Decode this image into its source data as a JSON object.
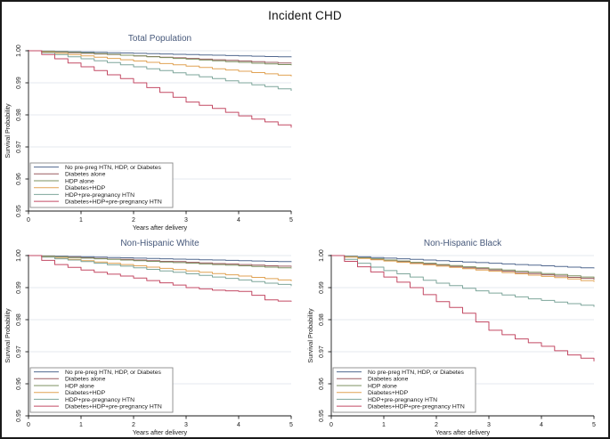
{
  "figure": {
    "title": "Incident CHD"
  },
  "styles": {
    "background": "#ffffff",
    "border_color": "#1a1a1a",
    "panel_title_color": "#47597b",
    "grid_color": "#e6eaef",
    "axis_color": "#1a1a1a",
    "tick_text_color": "#1a1a1a",
    "legend_border_color": "#8a8a8a",
    "legend_bg": "#ffffff",
    "series_colors": {
      "navy": "#51688f",
      "maroon": "#9a5c60",
      "forest_green": "#7d9060",
      "dark_orange": "#e0a254",
      "teal": "#7ea69b",
      "cranberry": "#c34a64"
    }
  },
  "chart_data": [
    {
      "type": "line",
      "subtype": "kaplan-meier-step",
      "title": "Total Population",
      "xlabel": "Years after delivery",
      "ylabel": "Survival Probability",
      "xlim": [
        0,
        5
      ],
      "ylim": [
        0.95,
        1.0
      ],
      "xticks": [
        0,
        1,
        2,
        3,
        4,
        5
      ],
      "xtick_labels": [
        "0",
        "1",
        "2",
        "3",
        "4",
        "5"
      ],
      "yticks": [
        0.95,
        0.96,
        0.97,
        0.98,
        0.99,
        1.0
      ],
      "ytick_labels": [
        "0.95",
        "0.96",
        "0.97",
        "0.98",
        "0.99",
        "1.00"
      ],
      "grid": "horizontal",
      "legend_position": "inside-bottom-left",
      "x": [
        0,
        0.25,
        0.5,
        0.75,
        1,
        1.25,
        1.5,
        1.75,
        2,
        2.25,
        2.5,
        2.75,
        3,
        3.25,
        3.5,
        3.75,
        4,
        4.25,
        4.5,
        4.75,
        5
      ],
      "series": [
        {
          "name": "No pre-preg HTN, HDP, or Diabetes",
          "color": "#51688f",
          "y": [
            1.0,
            0.9999,
            0.9998,
            0.9997,
            0.9996,
            0.9995,
            0.9994,
            0.9993,
            0.9992,
            0.9991,
            0.999,
            0.9989,
            0.9988,
            0.9987,
            0.9986,
            0.9985,
            0.9984,
            0.9983,
            0.9982,
            0.9981,
            0.998
          ]
        },
        {
          "name": "Diabetes alone",
          "color": "#9a5c60",
          "y": [
            1.0,
            0.9998,
            0.9996,
            0.9994,
            0.9992,
            0.999,
            0.9988,
            0.9986,
            0.9984,
            0.9982,
            0.998,
            0.9978,
            0.9976,
            0.9974,
            0.9972,
            0.997,
            0.9968,
            0.9966,
            0.9964,
            0.9962,
            0.996
          ]
        },
        {
          "name": "HDP alone",
          "color": "#7d9060",
          "y": [
            1.0,
            0.9998,
            0.9997,
            0.9995,
            0.9993,
            0.9991,
            0.9989,
            0.9986,
            0.9984,
            0.9981,
            0.9979,
            0.9976,
            0.9974,
            0.9971,
            0.9969,
            0.9966,
            0.9964,
            0.9961,
            0.9959,
            0.9957,
            0.9955
          ]
        },
        {
          "name": "Diabetes+HDP",
          "color": "#e0a254",
          "y": [
            1.0,
            0.9996,
            0.9992,
            0.9988,
            0.9984,
            0.998,
            0.9976,
            0.9972,
            0.9968,
            0.9964,
            0.996,
            0.9956,
            0.9952,
            0.9948,
            0.9944,
            0.994,
            0.9936,
            0.9932,
            0.9928,
            0.9924,
            0.992
          ]
        },
        {
          "name": "HDP+pre-pregnancy HTN",
          "color": "#7ea69b",
          "y": [
            1.0,
            0.9994,
            0.9988,
            0.9981,
            0.9975,
            0.9969,
            0.9963,
            0.9956,
            0.995,
            0.9944,
            0.9938,
            0.9931,
            0.9925,
            0.9919,
            0.9913,
            0.9906,
            0.99,
            0.9894,
            0.9888,
            0.9881,
            0.9875
          ]
        },
        {
          "name": "Diabetes+HDP+pre-pregnancy HTN",
          "color": "#c34a64",
          "y": [
            1.0,
            0.9988,
            0.9975,
            0.9962,
            0.995,
            0.9938,
            0.9925,
            0.9913,
            0.99,
            0.9885,
            0.987,
            0.9855,
            0.984,
            0.983,
            0.982,
            0.9808,
            0.9797,
            0.9787,
            0.9778,
            0.9769,
            0.976
          ]
        }
      ]
    },
    {
      "type": "line",
      "subtype": "kaplan-meier-step",
      "title": "Non-Hispanic White",
      "xlabel": "Years after delivery",
      "ylabel": "Survival Probability",
      "xlim": [
        0,
        5
      ],
      "ylim": [
        0.95,
        1.0
      ],
      "xticks": [
        0,
        1,
        2,
        3,
        4,
        5
      ],
      "xtick_labels": [
        "0",
        "1",
        "2",
        "3",
        "4",
        "5"
      ],
      "yticks": [
        0.95,
        0.96,
        0.97,
        0.98,
        0.99,
        1.0
      ],
      "ytick_labels": [
        "0.95",
        "0.96",
        "0.97",
        "0.98",
        "0.99",
        "1.00"
      ],
      "grid": "horizontal",
      "legend_position": "inside-bottom-left",
      "x": [
        0,
        0.25,
        0.5,
        0.75,
        1,
        1.25,
        1.5,
        1.75,
        2,
        2.25,
        2.5,
        2.75,
        3,
        3.25,
        3.5,
        3.75,
        4,
        4.25,
        4.5,
        4.75,
        5
      ],
      "series": [
        {
          "name": "No pre-preg HTN, HDP, or Diabetes",
          "color": "#51688f",
          "y": [
            1.0,
            0.9999,
            0.9998,
            0.9997,
            0.9996,
            0.9995,
            0.9994,
            0.9993,
            0.9992,
            0.9991,
            0.999,
            0.9989,
            0.9988,
            0.9987,
            0.9986,
            0.9985,
            0.9984,
            0.9983,
            0.9982,
            0.9981,
            0.998
          ]
        },
        {
          "name": "Diabetes alone",
          "color": "#9a5c60",
          "y": [
            1.0,
            0.9998,
            0.9996,
            0.9995,
            0.9993,
            0.9991,
            0.9989,
            0.9988,
            0.9986,
            0.9984,
            0.9982,
            0.9981,
            0.9979,
            0.9977,
            0.9975,
            0.9974,
            0.9972,
            0.997,
            0.9968,
            0.9967,
            0.9965
          ]
        },
        {
          "name": "HDP alone",
          "color": "#7d9060",
          "y": [
            1.0,
            0.9998,
            0.9996,
            0.9994,
            0.9992,
            0.999,
            0.9988,
            0.9986,
            0.9984,
            0.9982,
            0.998,
            0.9978,
            0.9976,
            0.9974,
            0.9972,
            0.997,
            0.9968,
            0.9966,
            0.9964,
            0.9962,
            0.996
          ]
        },
        {
          "name": "Diabetes+HDP",
          "color": "#e0a254",
          "y": [
            1.0,
            0.9996,
            0.9992,
            0.9988,
            0.9984,
            0.998,
            0.9976,
            0.9972,
            0.9968,
            0.9964,
            0.996,
            0.9956,
            0.9952,
            0.9948,
            0.9944,
            0.994,
            0.9936,
            0.9932,
            0.9928,
            0.9924,
            0.992
          ]
        },
        {
          "name": "HDP+pre-pregnancy HTN",
          "color": "#7ea69b",
          "y": [
            1.0,
            0.9995,
            0.999,
            0.9986,
            0.9981,
            0.9976,
            0.9971,
            0.9967,
            0.9962,
            0.9957,
            0.9952,
            0.9948,
            0.9943,
            0.9938,
            0.9933,
            0.9929,
            0.9924,
            0.9919,
            0.9914,
            0.991,
            0.9905
          ]
        },
        {
          "name": "Diabetes+HDP+pre-pregnancy HTN",
          "color": "#c34a64",
          "y": [
            1.0,
            0.9985,
            0.9972,
            0.9963,
            0.9955,
            0.9948,
            0.9942,
            0.9936,
            0.993,
            0.9922,
            0.9915,
            0.9908,
            0.99,
            0.9896,
            0.9892,
            0.989,
            0.9888,
            0.9876,
            0.9862,
            0.9858,
            0.9856
          ]
        }
      ]
    },
    {
      "type": "line",
      "subtype": "kaplan-meier-step",
      "title": "Non-Hispanic Black",
      "xlabel": "Years after delivery",
      "ylabel": "Survival Probability",
      "xlim": [
        0,
        5
      ],
      "ylim": [
        0.95,
        1.0
      ],
      "xticks": [
        0,
        1,
        2,
        3,
        4,
        5
      ],
      "xtick_labels": [
        "0",
        "1",
        "2",
        "3",
        "4",
        "5"
      ],
      "yticks": [
        0.95,
        0.96,
        0.97,
        0.98,
        0.99,
        1.0
      ],
      "ytick_labels": [
        "0.95",
        "0.96",
        "0.97",
        "0.98",
        "0.99",
        "1.00"
      ],
      "grid": "horizontal",
      "legend_position": "inside-bottom-left",
      "x": [
        0,
        0.25,
        0.5,
        0.75,
        1,
        1.25,
        1.5,
        1.75,
        2,
        2.25,
        2.5,
        2.75,
        3,
        3.25,
        3.5,
        3.75,
        4,
        4.25,
        4.5,
        4.75,
        5
      ],
      "series": [
        {
          "name": "No pre-preg HTN, HDP, or Diabetes",
          "color": "#51688f",
          "y": [
            1.0,
            0.9998,
            0.9996,
            0.9994,
            0.9992,
            0.999,
            0.9988,
            0.9986,
            0.9984,
            0.9982,
            0.998,
            0.9978,
            0.9976,
            0.9974,
            0.9972,
            0.997,
            0.9968,
            0.9966,
            0.9964,
            0.9962,
            0.996
          ]
        },
        {
          "name": "Diabetes alone",
          "color": "#9a5c60",
          "y": [
            1.0,
            0.9996,
            0.9992,
            0.9989,
            0.9985,
            0.9981,
            0.9977,
            0.9974,
            0.997,
            0.9966,
            0.9962,
            0.9959,
            0.9955,
            0.9951,
            0.9947,
            0.9944,
            0.994,
            0.9936,
            0.9932,
            0.9929,
            0.9925
          ]
        },
        {
          "name": "HDP alone",
          "color": "#7d9060",
          "y": [
            1.0,
            0.9997,
            0.9993,
            0.999,
            0.9986,
            0.9983,
            0.9979,
            0.9976,
            0.9972,
            0.9969,
            0.9965,
            0.9962,
            0.9958,
            0.9955,
            0.9951,
            0.9948,
            0.9944,
            0.9941,
            0.9937,
            0.9933,
            0.993
          ]
        },
        {
          "name": "Diabetes+HDP",
          "color": "#e0a254",
          "y": [
            1.0,
            0.9995,
            0.9991,
            0.9987,
            0.9983,
            0.9979,
            0.9975,
            0.9971,
            0.9967,
            0.9963,
            0.9959,
            0.9955,
            0.9951,
            0.9947,
            0.9943,
            0.9939,
            0.9935,
            0.9931,
            0.9927,
            0.9922,
            0.9918
          ]
        },
        {
          "name": "HDP+pre-pregnancy HTN",
          "color": "#7ea69b",
          "y": [
            1.0,
            0.9988,
            0.9976,
            0.9964,
            0.9953,
            0.9943,
            0.9933,
            0.9923,
            0.9914,
            0.9906,
            0.9898,
            0.989,
            0.9883,
            0.9877,
            0.9871,
            0.9865,
            0.986,
            0.9855,
            0.985,
            0.9845,
            0.984
          ]
        },
        {
          "name": "Diabetes+HDP+pre-pregnancy HTN",
          "color": "#c34a64",
          "y": [
            1.0,
            0.9982,
            0.9965,
            0.9949,
            0.9933,
            0.9917,
            0.99,
            0.9878,
            0.9856,
            0.9838,
            0.982,
            0.9793,
            0.9767,
            0.9753,
            0.974,
            0.9728,
            0.9717,
            0.9703,
            0.969,
            0.968,
            0.967
          ]
        }
      ]
    }
  ]
}
